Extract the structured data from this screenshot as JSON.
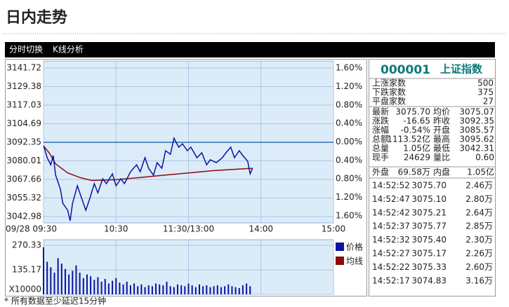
{
  "header": {
    "title": "日内走势"
  },
  "tabs": [
    "分时切换",
    "K线分析"
  ],
  "chart_data": [
    {
      "type": "line",
      "xlim": [
        0,
        240
      ],
      "xticks": [
        {
          "value": 0,
          "label": "09/28 09:30"
        },
        {
          "value": 60,
          "label": "10:30"
        },
        {
          "value": 120,
          "label": "11:30/13:00"
        },
        {
          "value": 180,
          "label": "14:00"
        },
        {
          "value": 240,
          "label": "15:00"
        }
      ],
      "ylim": [
        3038.8,
        3146.4
      ],
      "yticks": [
        3141.72,
        3129.38,
        3117.03,
        3104.69,
        3092.35,
        3080.01,
        3067.66,
        3055.32,
        3042.98
      ],
      "y2lim": [
        -1.752,
        1.752
      ],
      "y2ticks": [
        {
          "value": 1.6,
          "label": "1.60%"
        },
        {
          "value": 1.2,
          "label": "1.20%"
        },
        {
          "value": 0.8,
          "label": "0.80%"
        },
        {
          "value": 0.4,
          "label": "0.40%"
        },
        {
          "value": 0,
          "label": "0.00%"
        },
        {
          "value": -0.4,
          "label": "0.40%"
        },
        {
          "value": -0.8,
          "label": "0.80%"
        },
        {
          "value": -1.2,
          "label": "1.20%"
        },
        {
          "value": -1.6,
          "label": "1.60%"
        }
      ],
      "grid": true,
      "series": [
        {
          "name": "价格",
          "color": "#0a14a0",
          "x": [
            0,
            3,
            6,
            8,
            10,
            14,
            16,
            20,
            22,
            24,
            28,
            31,
            35,
            38,
            42,
            45,
            49,
            52,
            57,
            60,
            64,
            67,
            72,
            77,
            80,
            84,
            87,
            91,
            94,
            98,
            101,
            105,
            108,
            112,
            115,
            119,
            122,
            127,
            131,
            135,
            138,
            143,
            148,
            151,
            155,
            158,
            162,
            165,
            169,
            171,
            173
          ],
          "values": [
            3090.4,
            3082.1,
            3077.4,
            3083.5,
            3070.5,
            3061.1,
            3051.8,
            3047.2,
            3040.2,
            3051.8,
            3063.5,
            3056.5,
            3047.2,
            3054.2,
            3064.9,
            3058.8,
            3068.1,
            3064.9,
            3071.4,
            3063.5,
            3068.1,
            3064.9,
            3072.8,
            3077.4,
            3072.8,
            3082.1,
            3075.1,
            3070.5,
            3078.8,
            3075.1,
            3086.8,
            3084.4,
            3095.1,
            3089.1,
            3091.4,
            3086.8,
            3089.1,
            3082.1,
            3085.4,
            3077.4,
            3080.7,
            3078.8,
            3082.1,
            3085.4,
            3089.1,
            3082.1,
            3086.8,
            3083.5,
            3079.8,
            3071.4,
            3075.1
          ]
        },
        {
          "name": "均线",
          "color": "#8b0a0a",
          "x": [
            0,
            5,
            10,
            20,
            30,
            40,
            60,
            80,
            100,
            120,
            140,
            160,
            173
          ],
          "values": [
            3090,
            3085,
            3078,
            3072,
            3069,
            3067,
            3067.5,
            3069,
            3070.5,
            3072,
            3073.5,
            3074.5,
            3075.1
          ]
        }
      ]
    },
    {
      "type": "bar",
      "color": "#0a14a0",
      "ylim": [
        0,
        301.8
      ],
      "yticks": [
        270.33,
        135.17,
        {
          "value": 0,
          "label": "X10000"
        }
      ],
      "x": [
        0,
        3,
        6,
        9,
        12,
        15,
        18,
        21,
        24,
        27,
        30,
        33,
        36,
        39,
        42,
        45,
        48,
        51,
        54,
        57,
        60,
        63,
        66,
        69,
        72,
        75,
        78,
        81,
        84,
        87,
        90,
        93,
        96,
        99,
        102,
        105,
        108,
        111,
        114,
        117,
        120,
        123,
        126,
        129,
        132,
        135,
        138,
        141,
        144,
        147,
        150,
        153,
        156,
        159,
        162,
        165,
        168,
        171
      ],
      "values": [
        260,
        180,
        150,
        120,
        200,
        170,
        140,
        110,
        130,
        160,
        120,
        90,
        110,
        100,
        80,
        95,
        70,
        85,
        60,
        75,
        90,
        65,
        55,
        70,
        50,
        60,
        45,
        55,
        40,
        50,
        45,
        60,
        55,
        50,
        70,
        45,
        40,
        55,
        50,
        45,
        60,
        50,
        40,
        55,
        45,
        50,
        40,
        45,
        50,
        40,
        45,
        55,
        45,
        40,
        35,
        50,
        60,
        45
      ]
    }
  ],
  "quote": {
    "code": "000001",
    "name": "上证指数",
    "breadth": [
      {
        "label": "上涨家数",
        "value": "500",
        "color": "#e00000"
      },
      {
        "label": "下跌家数",
        "value": "375",
        "color": "#008000"
      },
      {
        "label": "平盘家数",
        "value": "27",
        "color": "#222222"
      }
    ],
    "stats": [
      [
        {
          "label": "最新",
          "value": "3075.70",
          "color": "#008000"
        },
        {
          "label": "均价",
          "value": "3075.07",
          "color": "#008000"
        }
      ],
      [
        {
          "label": "涨跌",
          "value": "-16.65",
          "color": "#008000"
        },
        {
          "label": "昨收",
          "value": "3092.35",
          "color": "#222222"
        }
      ],
      [
        {
          "label": "涨幅",
          "value": "-0.54%",
          "color": "#008000"
        },
        {
          "label": "开盘",
          "value": "3085.57",
          "color": "#008000"
        }
      ],
      [
        {
          "label": "总额",
          "value": "1113.52亿",
          "color": "#e00000"
        },
        {
          "label": "最高",
          "value": "3095.62",
          "color": "#e00000"
        }
      ],
      [
        {
          "label": "总量",
          "value": "1.05亿",
          "color": "#e00000"
        },
        {
          "label": "最低",
          "value": "3042.31",
          "color": "#008000"
        }
      ],
      [
        {
          "label": "现手",
          "value": "24629",
          "color": "#e00000"
        },
        {
          "label": "量比",
          "value": "0.60",
          "color": "#222222"
        }
      ],
      [
        {
          "label": "外盘",
          "value": "69.58万",
          "color": "#e00000"
        },
        {
          "label": "内盘",
          "value": "1.05亿",
          "color": "#008000"
        }
      ]
    ],
    "trades": [
      {
        "time": "14:52:52",
        "price": "3075.70",
        "volume": "2.46万"
      },
      {
        "time": "14:52:47",
        "price": "3075.10",
        "volume": "2.80万"
      },
      {
        "time": "14:52:42",
        "price": "3075.21",
        "volume": "2.64万"
      },
      {
        "time": "14:52:37",
        "price": "3075.77",
        "volume": "2.85万"
      },
      {
        "time": "14:52:32",
        "price": "3075.40",
        "volume": "2.30万"
      },
      {
        "time": "14:52:27",
        "price": "3075.17",
        "volume": "2.26万"
      },
      {
        "time": "14:52:22",
        "price": "3075.33",
        "volume": "2.60万"
      },
      {
        "time": "14:52:17",
        "price": "3074.83",
        "volume": "3.16万"
      }
    ]
  },
  "footnote": "* 所有数据至少延迟15分钟"
}
